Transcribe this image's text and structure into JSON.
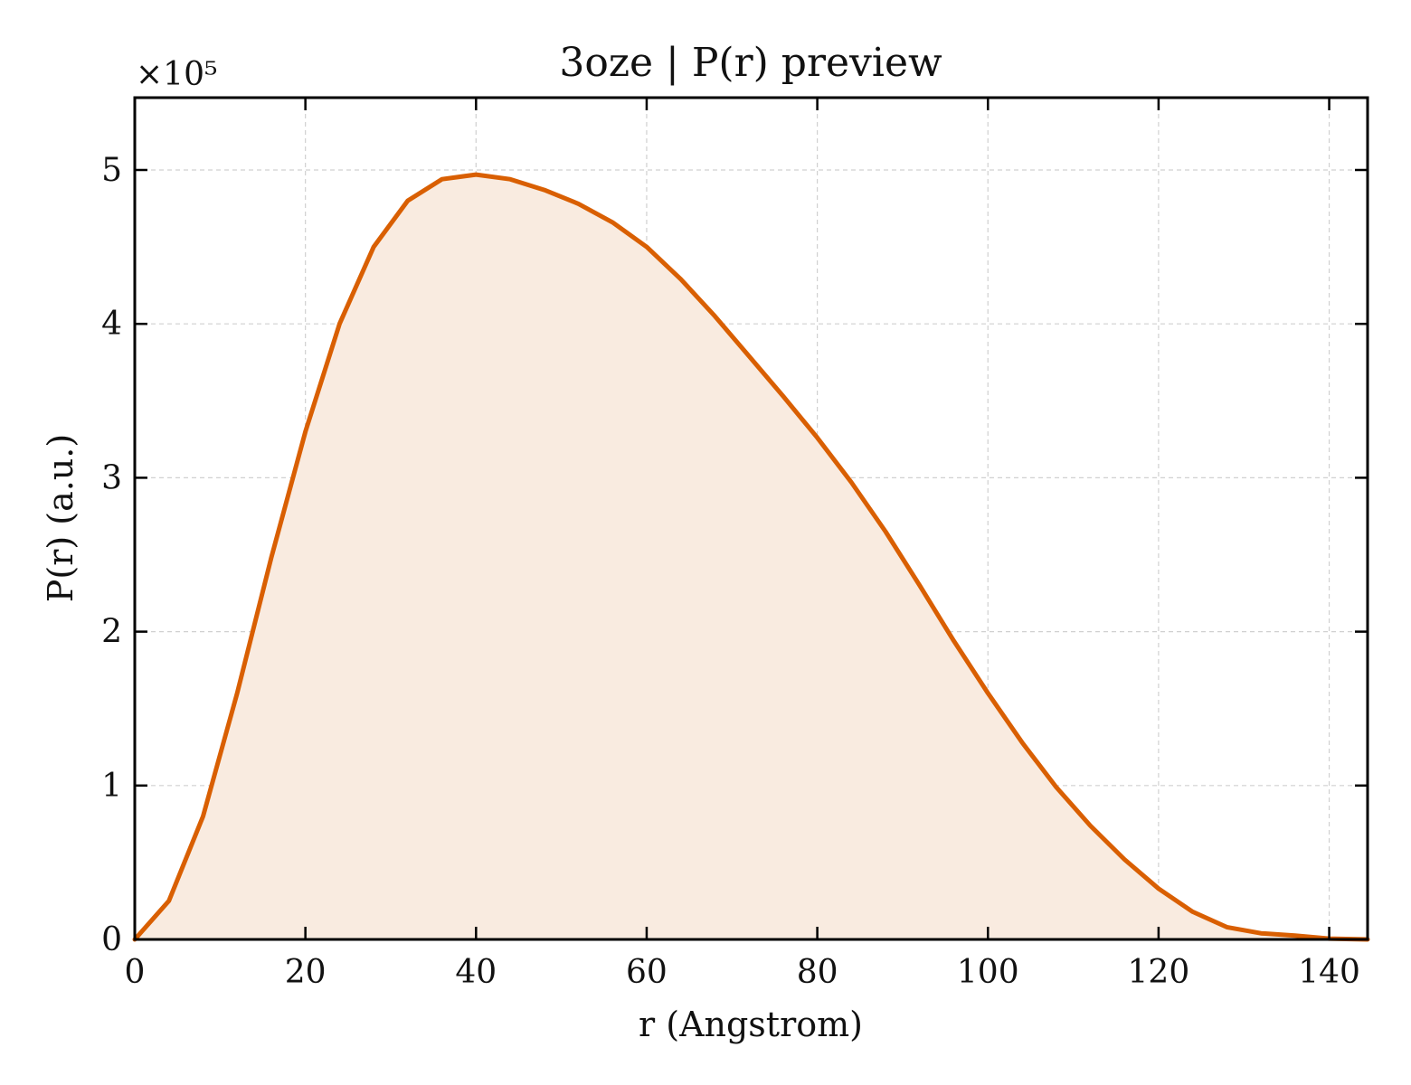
{
  "chart_data": {
    "type": "area",
    "title": "3oze | P(r) preview",
    "xlabel": "r (Angstrom)",
    "ylabel": "P(r) (a.u.)",
    "y_multiplier_label": "×10⁵",
    "xlim": [
      0,
      144.5
    ],
    "ylim": [
      0,
      5.47
    ],
    "xticks": [
      0,
      20,
      40,
      60,
      80,
      100,
      120,
      140
    ],
    "yticks": [
      0,
      1,
      2,
      3,
      4,
      5
    ],
    "grid": true,
    "legend": "none",
    "line_color": "#d95f02",
    "fill_color": "#f9ebe0",
    "series": [
      {
        "x": [
          0,
          4,
          8,
          12,
          16,
          20,
          24,
          28,
          32,
          36,
          40,
          44,
          48,
          52,
          56,
          60,
          64,
          68,
          72,
          76,
          80,
          84,
          88,
          92,
          96,
          100,
          104,
          108,
          112,
          116,
          120,
          124,
          128,
          132,
          136,
          140,
          144.5
        ],
        "y": [
          0,
          0.25,
          0.8,
          1.6,
          2.48,
          3.3,
          4.0,
          4.5,
          4.8,
          4.94,
          4.97,
          4.94,
          4.87,
          4.78,
          4.66,
          4.5,
          4.29,
          4.05,
          3.79,
          3.53,
          3.26,
          2.97,
          2.65,
          2.3,
          1.94,
          1.6,
          1.28,
          0.99,
          0.74,
          0.52,
          0.33,
          0.18,
          0.08,
          0.04,
          0.025,
          0.005,
          0
        ]
      }
    ]
  }
}
